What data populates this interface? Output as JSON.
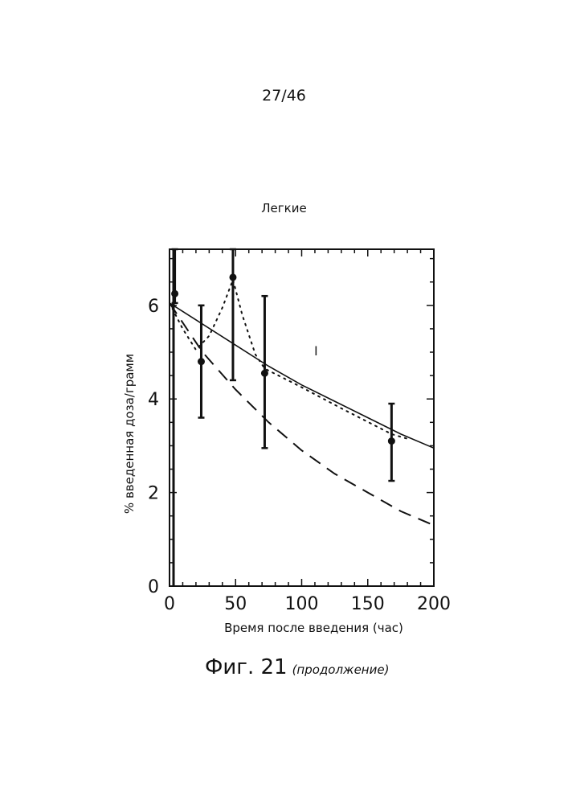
{
  "page": {
    "number": "27/46"
  },
  "figure": {
    "caption": "Фиг. 21",
    "caption_note": "(продолжение)"
  },
  "chart_data": {
    "type": "line",
    "title": "Легкие",
    "xlabel": "Время после введения (час)",
    "ylabel": "% введенная доза/грамм",
    "xlim": [
      0,
      200
    ],
    "ylim": [
      0,
      7.2
    ],
    "x_ticks": [
      "0",
      "50",
      "100",
      "150",
      "200"
    ],
    "y_ticks": [
      "0",
      "2",
      "4",
      "6"
    ],
    "grid": false,
    "annotation": "I",
    "measured": {
      "x": [
        4,
        24,
        48,
        72,
        168
      ],
      "y": [
        6.25,
        4.8,
        6.6,
        4.55,
        3.1
      ],
      "err_low": [
        6.05,
        3.6,
        4.4,
        2.95,
        2.25
      ],
      "err_high": [
        7.2,
        6.0,
        7.2,
        6.2,
        3.9
      ]
    },
    "series": [
      {
        "style": "solid",
        "x": [
          0,
          25,
          50,
          75,
          100,
          125,
          150,
          175,
          200
        ],
        "y": [
          6.05,
          5.6,
          5.15,
          4.7,
          4.3,
          3.95,
          3.6,
          3.25,
          2.95
        ]
      },
      {
        "style": "dotted",
        "x": [
          0,
          10,
          20,
          30,
          40,
          48,
          55,
          65,
          72,
          100,
          130,
          168,
          180
        ],
        "y": [
          6.05,
          5.5,
          5.05,
          5.35,
          5.95,
          6.55,
          5.8,
          4.95,
          4.65,
          4.25,
          3.8,
          3.25,
          3.15
        ]
      },
      {
        "style": "dashed",
        "x": [
          0,
          25,
          50,
          75,
          100,
          125,
          150,
          175,
          200
        ],
        "y": [
          6.05,
          5.0,
          4.2,
          3.5,
          2.9,
          2.4,
          2.0,
          1.6,
          1.3
        ]
      }
    ]
  }
}
